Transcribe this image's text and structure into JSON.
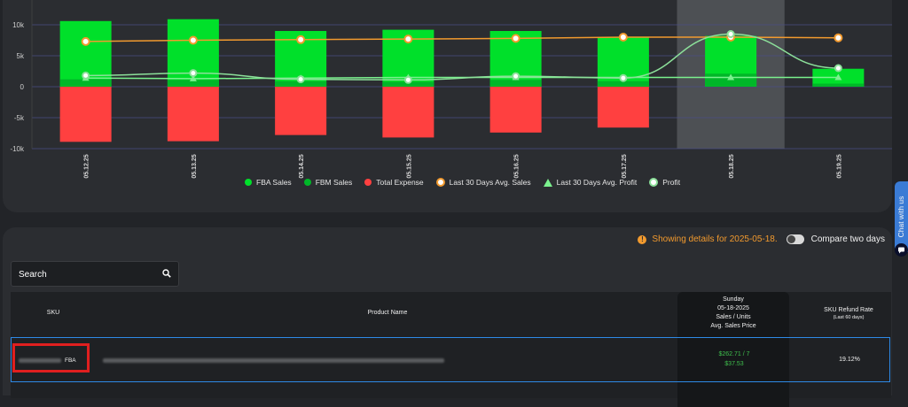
{
  "chart_data": {
    "type": "bar",
    "categories": [
      "05.12.25",
      "05.13.25",
      "05.14.25",
      "05.15.25",
      "05.16.25",
      "05.17.25",
      "05.18.25",
      "05.19.25"
    ],
    "y_ticks": [
      "10k",
      "5k",
      "0",
      "-5k",
      "-10k"
    ],
    "ylim": [
      -10000,
      11000
    ],
    "highlighted_category": "05.18.25",
    "series": [
      {
        "name": "FBA Sales",
        "kind": "bar",
        "color": "#00e02a",
        "values": [
          10600,
          10900,
          9000,
          9200,
          9000,
          8000,
          8200,
          2900
        ]
      },
      {
        "name": "FBM Sales",
        "kind": "bar",
        "color": "#00b728",
        "values": [
          1200,
          1100,
          900,
          800,
          1100,
          900,
          2100,
          500
        ]
      },
      {
        "name": "Total Expense",
        "kind": "bar",
        "color": "#ff4040",
        "values": [
          -8900,
          -8800,
          -7800,
          -8200,
          -7400,
          -6600,
          0,
          0
        ]
      },
      {
        "name": "Last 30 Days Avg. Sales",
        "kind": "line",
        "color": "#f29a2e",
        "values": [
          7300,
          7500,
          7600,
          7700,
          7800,
          8000,
          8000,
          7900
        ]
      },
      {
        "name": "Last 30 Days Avg. Profit",
        "kind": "line",
        "color": "#7bf18e",
        "values": [
          1400,
          1300,
          1400,
          1500,
          1500,
          1500,
          1500,
          1500
        ]
      },
      {
        "name": "Profit",
        "kind": "line",
        "color": "#8ce09a",
        "values": [
          1800,
          2200,
          1200,
          1100,
          1700,
          1400,
          8500,
          3000
        ]
      }
    ]
  },
  "legend": [
    {
      "label": "FBA Sales",
      "color": "#00e02a",
      "shape": "dot"
    },
    {
      "label": "FBM Sales",
      "color": "#00b728",
      "shape": "dot"
    },
    {
      "label": "Total Expense",
      "color": "#ff4040",
      "shape": "dot"
    },
    {
      "label": "Last 30 Days Avg. Sales",
      "color": "#f29a2e",
      "shape": "ring"
    },
    {
      "label": "Last 30 Days Avg. Profit",
      "color": "#7bf18e",
      "shape": "triangle"
    },
    {
      "label": "Profit",
      "color": "#8ce09a",
      "shape": "ring"
    }
  ],
  "details": {
    "info_text": "Showing details for 2025-05-18.",
    "compare_label": "Compare two days"
  },
  "search": {
    "placeholder": "Search",
    "icon": "search-icon"
  },
  "table": {
    "headers": {
      "sku": "SKU",
      "product": "Product Name",
      "day_name": "Sunday",
      "day_date": "05-18-2025",
      "sales_units": "Sales / Units",
      "avg_price": "Avg. Sales Price",
      "refund": "SKU Refund Rate",
      "refund_sub": "(Last 60 days)"
    },
    "row": {
      "fulfillment": "FBA",
      "sales_units": "$262.71  /  7",
      "avg_price": "$37.53",
      "refund": "19.12%"
    }
  },
  "chat": {
    "label": "Chat with us"
  }
}
